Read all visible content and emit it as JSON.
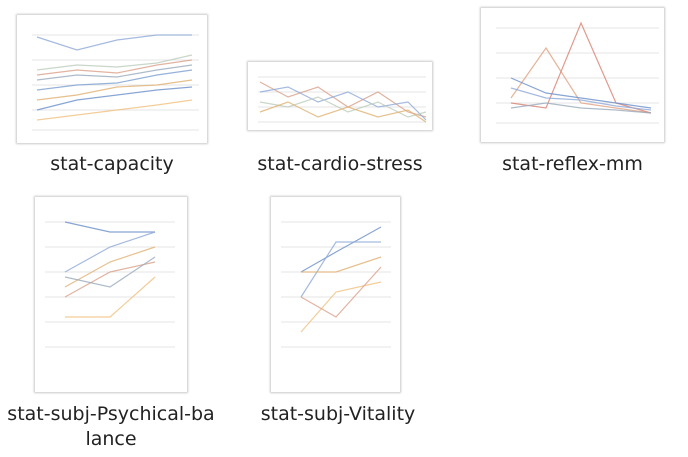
{
  "files": [
    {
      "name": "stat-capacity"
    },
    {
      "name": "stat-cardio-stress"
    },
    {
      "name": "stat-reflex-mm"
    },
    {
      "name": "stat-subj-Psychical-balance"
    },
    {
      "name": "stat-subj-Vitality"
    }
  ]
}
